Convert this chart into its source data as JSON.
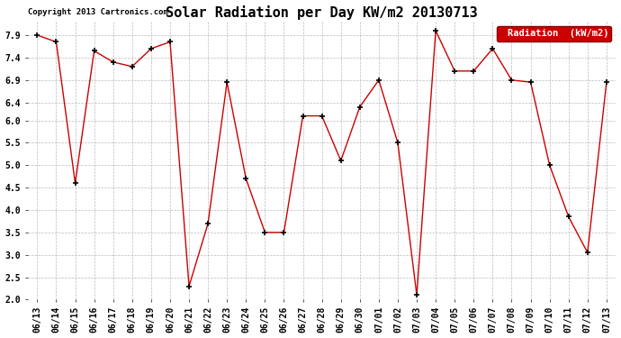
{
  "title": "Solar Radiation per Day KW/m2 20130713",
  "copyright": "Copyright 2013 Cartronics.com",
  "legend_label": "Radiation  (kW/m2)",
  "dates": [
    "06/13",
    "06/14",
    "06/15",
    "06/16",
    "06/17",
    "06/18",
    "06/19",
    "06/20",
    "06/21",
    "06/22",
    "06/23",
    "06/24",
    "06/25",
    "06/26",
    "06/27",
    "06/28",
    "06/29",
    "06/30",
    "07/01",
    "07/02",
    "07/03",
    "07/04",
    "07/05",
    "07/06",
    "07/07",
    "07/08",
    "07/09",
    "07/10",
    "07/11",
    "07/12",
    "07/13"
  ],
  "values": [
    7.9,
    7.75,
    4.6,
    7.55,
    7.3,
    7.2,
    7.6,
    7.75,
    2.3,
    3.7,
    6.85,
    4.7,
    3.5,
    3.5,
    6.1,
    6.1,
    5.1,
    6.3,
    6.9,
    5.5,
    2.1,
    8.0,
    7.1,
    7.1,
    7.6,
    6.9,
    6.85,
    5.0,
    3.85,
    3.05,
    6.85
  ],
  "line_color": "#cc0000",
  "marker_color": "#000000",
  "background_color": "#ffffff",
  "grid_color": "#aaaaaa",
  "legend_bg": "#cc0000",
  "legend_text_color": "#ffffff",
  "ylim": [
    2.0,
    8.2
  ],
  "yticks": [
    2.0,
    2.5,
    3.0,
    3.5,
    4.0,
    4.5,
    5.0,
    5.5,
    6.0,
    6.4,
    6.9,
    7.4,
    7.9
  ],
  "title_fontsize": 11,
  "copyright_fontsize": 6.5,
  "tick_fontsize": 7,
  "legend_fontsize": 7.5,
  "figwidth": 6.9,
  "figheight": 3.75
}
